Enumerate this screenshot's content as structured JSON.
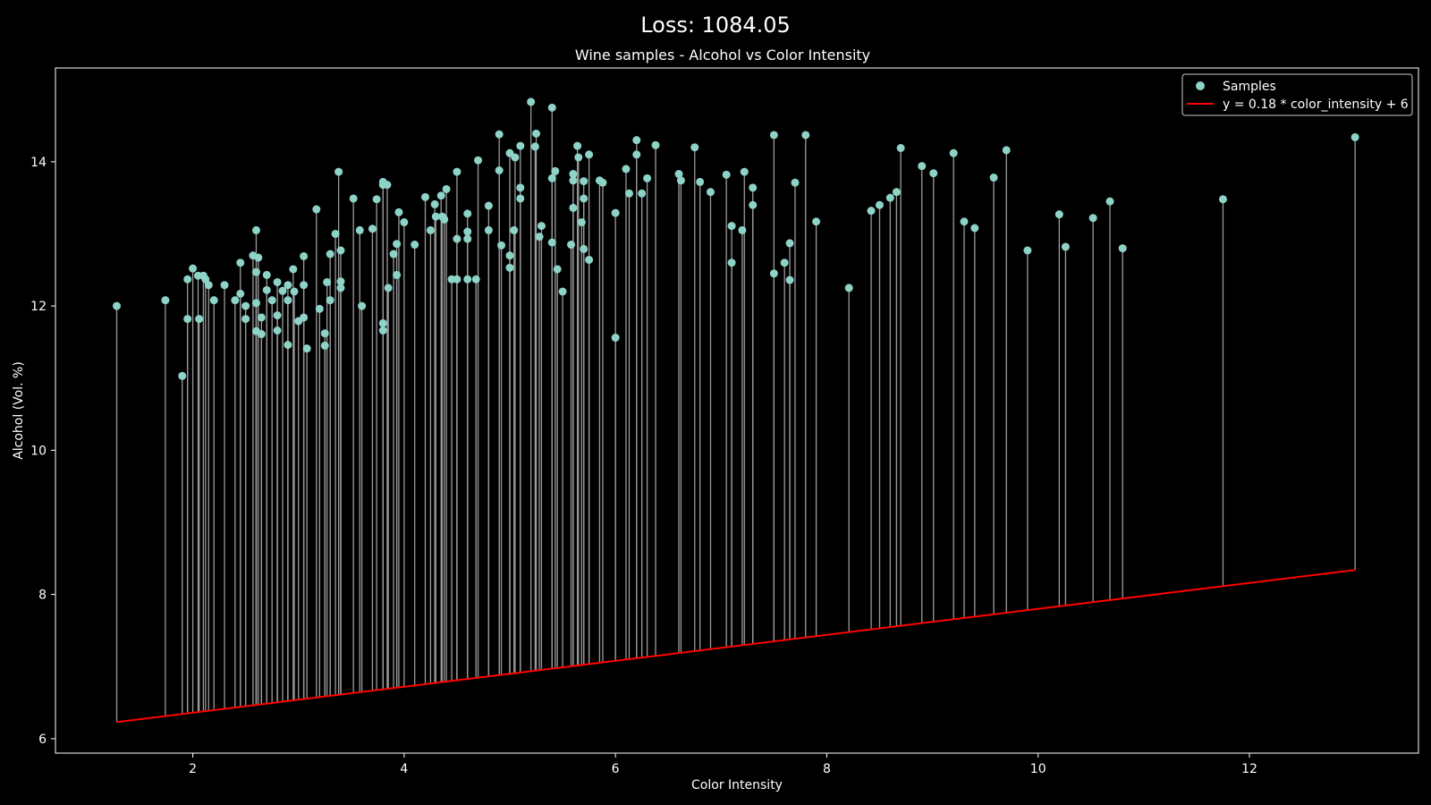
{
  "figure": {
    "suptitle": "Loss: 1084.05"
  },
  "colors": {
    "background": "#000000",
    "foreground": "#ffffff",
    "point": "#8dd3c7",
    "stem": "#9a9a9a",
    "fit_line": "#ff0000"
  },
  "chart_data": {
    "type": "scatter",
    "title": "Wine samples - Alcohol vs Color Intensity",
    "xlabel": "Color Intensity",
    "ylabel": "Alcohol (Vol. %)",
    "xlim": [
      0.7,
      13.6
    ],
    "ylim": [
      5.8,
      15.3
    ],
    "xticks": [
      2,
      4,
      6,
      8,
      10,
      12
    ],
    "yticks": [
      6,
      8,
      10,
      12,
      14
    ],
    "grid": false,
    "legend_position": "top-right",
    "series": [
      {
        "name": "Samples",
        "kind": "scatter",
        "points": [
          [
            1.28,
            12.0
          ],
          [
            1.74,
            12.08
          ],
          [
            1.9,
            11.03
          ],
          [
            1.95,
            12.37
          ],
          [
            1.95,
            11.82
          ],
          [
            2.0,
            12.52
          ],
          [
            2.05,
            12.42
          ],
          [
            2.06,
            11.82
          ],
          [
            2.1,
            12.42
          ],
          [
            2.12,
            12.37
          ],
          [
            2.15,
            12.29
          ],
          [
            2.2,
            12.08
          ],
          [
            2.3,
            12.29
          ],
          [
            2.4,
            12.08
          ],
          [
            2.45,
            12.6
          ],
          [
            2.45,
            12.17
          ],
          [
            2.5,
            12.0
          ],
          [
            2.5,
            11.82
          ],
          [
            2.57,
            12.7
          ],
          [
            2.6,
            13.05
          ],
          [
            2.6,
            12.47
          ],
          [
            2.6,
            12.04
          ],
          [
            2.6,
            11.65
          ],
          [
            2.62,
            12.67
          ],
          [
            2.65,
            11.84
          ],
          [
            2.65,
            11.61
          ],
          [
            2.7,
            12.43
          ],
          [
            2.7,
            12.22
          ],
          [
            2.75,
            12.08
          ],
          [
            2.8,
            12.33
          ],
          [
            2.8,
            11.87
          ],
          [
            2.8,
            11.66
          ],
          [
            2.85,
            12.21
          ],
          [
            2.9,
            12.29
          ],
          [
            2.9,
            12.08
          ],
          [
            2.9,
            11.46
          ],
          [
            2.95,
            12.51
          ],
          [
            2.96,
            12.2
          ],
          [
            3.0,
            11.79
          ],
          [
            3.05,
            12.69
          ],
          [
            3.05,
            12.29
          ],
          [
            3.05,
            11.84
          ],
          [
            3.08,
            11.41
          ],
          [
            3.17,
            13.34
          ],
          [
            3.2,
            11.96
          ],
          [
            3.25,
            11.62
          ],
          [
            3.25,
            11.45
          ],
          [
            3.27,
            12.33
          ],
          [
            3.3,
            12.72
          ],
          [
            3.3,
            12.08
          ],
          [
            3.35,
            13.0
          ],
          [
            3.38,
            13.86
          ],
          [
            3.4,
            12.34
          ],
          [
            3.4,
            12.25
          ],
          [
            3.4,
            12.77
          ],
          [
            3.52,
            13.49
          ],
          [
            3.58,
            13.05
          ],
          [
            3.6,
            12.0
          ],
          [
            3.7,
            13.07
          ],
          [
            3.74,
            13.48
          ],
          [
            3.8,
            13.72
          ],
          [
            3.8,
            13.68
          ],
          [
            3.8,
            11.76
          ],
          [
            3.8,
            11.66
          ],
          [
            3.84,
            13.68
          ],
          [
            3.85,
            12.25
          ],
          [
            3.9,
            12.72
          ],
          [
            3.93,
            12.86
          ],
          [
            3.93,
            12.43
          ],
          [
            3.95,
            13.3
          ],
          [
            4.0,
            13.16
          ],
          [
            4.1,
            12.85
          ],
          [
            4.2,
            13.51
          ],
          [
            4.25,
            13.05
          ],
          [
            4.29,
            13.41
          ],
          [
            4.3,
            13.24
          ],
          [
            4.35,
            13.53
          ],
          [
            4.36,
            13.24
          ],
          [
            4.38,
            13.2
          ],
          [
            4.4,
            13.62
          ],
          [
            4.45,
            12.37
          ],
          [
            4.5,
            12.37
          ],
          [
            4.5,
            12.93
          ],
          [
            4.5,
            13.86
          ],
          [
            4.6,
            13.28
          ],
          [
            4.6,
            13.03
          ],
          [
            4.6,
            12.93
          ],
          [
            4.6,
            12.37
          ],
          [
            4.68,
            12.37
          ],
          [
            4.7,
            14.02
          ],
          [
            4.8,
            13.39
          ],
          [
            4.8,
            13.05
          ],
          [
            4.9,
            14.38
          ],
          [
            4.9,
            13.88
          ],
          [
            4.92,
            12.84
          ],
          [
            5.0,
            14.12
          ],
          [
            5.0,
            12.7
          ],
          [
            5.0,
            12.53
          ],
          [
            5.04,
            13.05
          ],
          [
            5.05,
            14.06
          ],
          [
            5.1,
            14.22
          ],
          [
            5.1,
            13.64
          ],
          [
            5.1,
            13.49
          ],
          [
            5.2,
            14.83
          ],
          [
            5.24,
            14.21
          ],
          [
            5.25,
            14.39
          ],
          [
            5.28,
            12.96
          ],
          [
            5.3,
            13.11
          ],
          [
            5.4,
            14.75
          ],
          [
            5.4,
            13.77
          ],
          [
            5.4,
            12.88
          ],
          [
            5.43,
            13.87
          ],
          [
            5.45,
            12.51
          ],
          [
            5.5,
            12.2
          ],
          [
            5.58,
            12.85
          ],
          [
            5.6,
            13.83
          ],
          [
            5.6,
            13.74
          ],
          [
            5.6,
            13.36
          ],
          [
            5.64,
            14.22
          ],
          [
            5.65,
            14.06
          ],
          [
            5.68,
            13.16
          ],
          [
            5.7,
            13.73
          ],
          [
            5.7,
            13.49
          ],
          [
            5.7,
            12.79
          ],
          [
            5.75,
            14.1
          ],
          [
            5.75,
            12.64
          ],
          [
            5.85,
            13.74
          ],
          [
            5.88,
            13.71
          ],
          [
            6.0,
            13.29
          ],
          [
            6.0,
            11.56
          ],
          [
            6.1,
            13.9
          ],
          [
            6.13,
            13.56
          ],
          [
            6.2,
            14.3
          ],
          [
            6.2,
            14.1
          ],
          [
            6.25,
            13.56
          ],
          [
            6.3,
            13.77
          ],
          [
            6.38,
            14.23
          ],
          [
            6.6,
            13.83
          ],
          [
            6.62,
            13.74
          ],
          [
            6.75,
            14.2
          ],
          [
            6.8,
            13.72
          ],
          [
            6.9,
            13.58
          ],
          [
            7.05,
            13.82
          ],
          [
            7.1,
            13.11
          ],
          [
            7.1,
            12.6
          ],
          [
            7.2,
            13.05
          ],
          [
            7.22,
            13.86
          ],
          [
            7.3,
            13.64
          ],
          [
            7.3,
            13.4
          ],
          [
            7.5,
            14.37
          ],
          [
            7.5,
            12.45
          ],
          [
            7.6,
            12.6
          ],
          [
            7.65,
            12.87
          ],
          [
            7.65,
            12.36
          ],
          [
            7.7,
            13.71
          ],
          [
            7.8,
            14.37
          ],
          [
            7.9,
            13.17
          ],
          [
            8.21,
            12.25
          ],
          [
            8.42,
            13.32
          ],
          [
            8.5,
            13.4
          ],
          [
            8.6,
            13.5
          ],
          [
            8.66,
            13.58
          ],
          [
            8.7,
            14.19
          ],
          [
            8.9,
            13.94
          ],
          [
            9.01,
            13.84
          ],
          [
            9.2,
            14.12
          ],
          [
            9.3,
            13.17
          ],
          [
            9.4,
            13.08
          ],
          [
            9.58,
            13.78
          ],
          [
            9.7,
            14.16
          ],
          [
            9.9,
            12.77
          ],
          [
            10.2,
            13.27
          ],
          [
            10.26,
            12.82
          ],
          [
            10.52,
            13.22
          ],
          [
            10.68,
            13.45
          ],
          [
            10.8,
            12.8
          ],
          [
            11.75,
            13.48
          ],
          [
            13.0,
            14.34
          ]
        ]
      },
      {
        "name": "y = 0.18 * color_intensity + 6",
        "kind": "line",
        "slope": 0.18,
        "intercept": 6,
        "x_range": [
          1.28,
          13.0
        ]
      }
    ]
  }
}
